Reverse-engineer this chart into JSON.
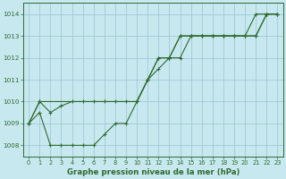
{
  "title": "Graphe pression niveau de la mer (hPa)",
  "background_color": "#c8e8f0",
  "grid_color": "#a0c8d8",
  "line_color": "#2d6a2d",
  "xlim": [
    -0.5,
    23.5
  ],
  "ylim": [
    1007.5,
    1014.5
  ],
  "yticks": [
    1008,
    1009,
    1010,
    1011,
    1012,
    1013,
    1014
  ],
  "xticks": [
    0,
    1,
    2,
    3,
    4,
    5,
    6,
    7,
    8,
    9,
    10,
    11,
    12,
    13,
    14,
    15,
    16,
    17,
    18,
    19,
    20,
    21,
    22,
    23
  ],
  "series": [
    {
      "x": [
        0,
        1,
        2,
        3,
        4,
        5,
        6,
        7,
        8,
        9,
        10,
        11,
        12,
        13,
        14,
        15,
        16,
        17,
        18,
        19,
        20,
        21,
        22,
        23
      ],
      "y": [
        1009.0,
        1009.5,
        1008.0,
        1008.0,
        1008.0,
        1008.0,
        1008.0,
        1008.5,
        1009.0,
        1009.0,
        1010.0,
        1011.0,
        1012.0,
        1012.0,
        1013.0,
        1013.0,
        1013.0,
        1013.0,
        1013.0,
        1013.0,
        1013.0,
        1014.0,
        1014.0,
        1014.0
      ]
    },
    {
      "x": [
        0,
        1,
        2,
        3,
        4,
        5,
        6,
        7,
        8,
        9,
        10,
        11,
        12,
        13,
        14,
        15,
        16,
        17,
        18,
        19,
        20,
        21,
        22,
        23
      ],
      "y": [
        1009.0,
        1010.0,
        1009.5,
        1009.8,
        1010.0,
        1010.0,
        1010.0,
        1010.0,
        1010.0,
        1010.0,
        1010.0,
        1011.0,
        1011.5,
        1012.0,
        1013.0,
        1013.0,
        1013.0,
        1013.0,
        1013.0,
        1013.0,
        1013.0,
        1013.0,
        1014.0,
        1014.0
      ]
    },
    {
      "x": [
        0,
        1,
        10,
        11,
        12,
        13,
        14,
        15,
        16,
        17,
        18,
        19,
        20,
        21,
        22,
        23
      ],
      "y": [
        1009.0,
        1010.0,
        1010.0,
        1011.0,
        1012.0,
        1012.0,
        1012.0,
        1013.0,
        1013.0,
        1013.0,
        1013.0,
        1013.0,
        1013.0,
        1013.0,
        1014.0,
        1014.0
      ]
    }
  ]
}
